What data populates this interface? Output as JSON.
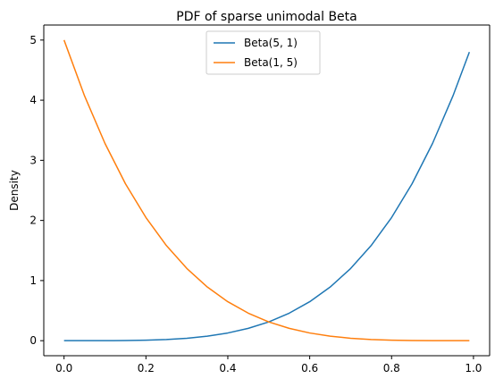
{
  "chart_data": {
    "type": "line",
    "title": "PDF of sparse unimodal Beta",
    "xlabel": "",
    "ylabel": "Density",
    "xlim": [
      -0.0495,
      1.0395
    ],
    "ylim": [
      -0.25,
      5.25
    ],
    "xticks": [
      0.0,
      0.2,
      0.4,
      0.6,
      0.8,
      1.0
    ],
    "xtick_labels": [
      "0.0",
      "0.2",
      "0.4",
      "0.6",
      "0.8",
      "1.0"
    ],
    "yticks": [
      0,
      1,
      2,
      3,
      4,
      5
    ],
    "ytick_labels": [
      "0",
      "1",
      "2",
      "3",
      "4",
      "5"
    ],
    "grid": false,
    "legend_position": "top-center",
    "series": [
      {
        "name": "Beta(5, 1)",
        "color": "#1f77b4",
        "x": [
          0.0,
          0.05,
          0.1,
          0.15,
          0.2,
          0.25,
          0.3,
          0.35,
          0.4,
          0.45,
          0.5,
          0.55,
          0.6,
          0.65,
          0.7,
          0.75,
          0.8,
          0.85,
          0.9,
          0.95,
          0.99
        ],
        "y": [
          0.0,
          3e-05,
          0.0005,
          0.0025,
          0.008,
          0.0195,
          0.0405,
          0.075,
          0.128,
          0.205,
          0.3125,
          0.4575,
          0.648,
          0.8925,
          1.2005,
          1.582,
          2.048,
          2.61,
          3.2805,
          4.0725,
          4.8
        ]
      },
      {
        "name": "Beta(1, 5)",
        "color": "#ff7f0e",
        "x": [
          0.0,
          0.05,
          0.1,
          0.15,
          0.2,
          0.25,
          0.3,
          0.35,
          0.4,
          0.45,
          0.5,
          0.55,
          0.6,
          0.65,
          0.7,
          0.75,
          0.8,
          0.85,
          0.9,
          0.95,
          0.99
        ],
        "y": [
          5.0,
          4.0725,
          3.2805,
          2.61,
          2.048,
          1.582,
          1.2005,
          0.8925,
          0.648,
          0.4575,
          0.3125,
          0.205,
          0.128,
          0.075,
          0.0405,
          0.0195,
          0.008,
          0.0025,
          0.0005,
          3e-05,
          0.0
        ]
      }
    ]
  }
}
